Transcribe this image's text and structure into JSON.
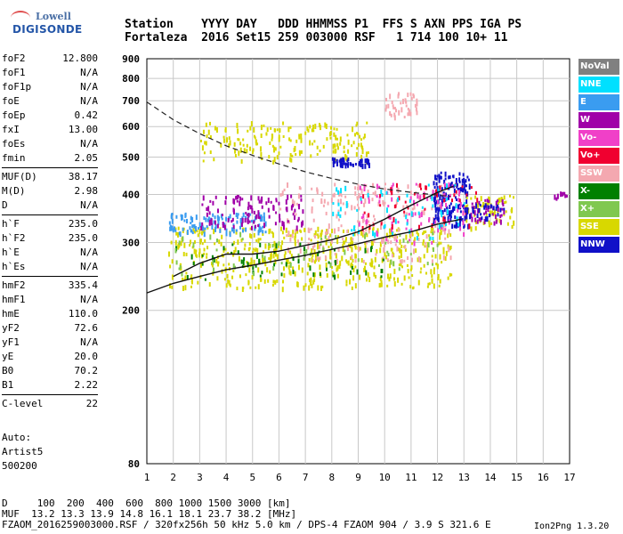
{
  "logo": {
    "line1": "Lowell",
    "line2": "DIGISONDE"
  },
  "header": {
    "row1": "Station    YYYY DAY   DDD HHMMSS P1  FFS S AXN PPS IGA PS",
    "row2": "Fortaleza  2016 Set15 259 003000 RSF   1 714 100 10+ 11"
  },
  "params": [
    {
      "name": "foF2",
      "value": "12.800"
    },
    {
      "name": "foF1",
      "value": "N/A"
    },
    {
      "name": "foF1p",
      "value": "N/A"
    },
    {
      "name": "foE",
      "value": "N/A"
    },
    {
      "name": "foEp",
      "value": "0.42"
    },
    {
      "name": "fxI",
      "value": "13.00"
    },
    {
      "name": "foEs",
      "value": "N/A"
    },
    {
      "name": "fmin",
      "value": "2.05"
    },
    {
      "name": "sep"
    },
    {
      "name": "MUF(D)",
      "value": "38.17"
    },
    {
      "name": "M(D)",
      "value": "2.98"
    },
    {
      "name": "D",
      "value": "N/A"
    },
    {
      "name": "sep"
    },
    {
      "name": "h`F",
      "value": "235.0"
    },
    {
      "name": "h`F2",
      "value": "235.0"
    },
    {
      "name": "h`E",
      "value": "N/A"
    },
    {
      "name": "h`Es",
      "value": "N/A"
    },
    {
      "name": "sep"
    },
    {
      "name": "hmF2",
      "value": "335.4"
    },
    {
      "name": "hmF1",
      "value": "N/A"
    },
    {
      "name": "hmE",
      "value": "110.0"
    },
    {
      "name": "yF2",
      "value": "72.6"
    },
    {
      "name": "yF1",
      "value": "N/A"
    },
    {
      "name": "yE",
      "value": "20.0"
    },
    {
      "name": "B0",
      "value": "70.2"
    },
    {
      "name": "B1",
      "value": "2.22"
    },
    {
      "name": "sep"
    },
    {
      "name": "C-level",
      "value": "22"
    }
  ],
  "auto": {
    "l1": "Auto:",
    "l2": "Artist5",
    "l3": "500200"
  },
  "legend": [
    {
      "label": "NoVal",
      "color": "#808080"
    },
    {
      "label": "NNE",
      "color": "#00e0ff"
    },
    {
      "label": "E",
      "color": "#3a9cf0"
    },
    {
      "label": "W",
      "color": "#a000a8"
    },
    {
      "label": "Vo-",
      "color": "#f040c8"
    },
    {
      "label": "Vo+",
      "color": "#f00030"
    },
    {
      "label": "SSW",
      "color": "#f4a8b0"
    },
    {
      "label": "X-",
      "color": "#008000"
    },
    {
      "label": "X+",
      "color": "#80c850"
    },
    {
      "label": "SSE",
      "color": "#d8d800"
    },
    {
      "label": "NNW",
      "color": "#1010c8"
    }
  ],
  "chart_data": {
    "type": "scatter",
    "xlim": [
      1,
      17
    ],
    "ylim": [
      80,
      900
    ],
    "y_scale": "log",
    "xticks": [
      "1",
      "2",
      "3",
      "4",
      "5",
      "6",
      "7",
      "8",
      "9",
      "10",
      "11",
      "12",
      "13",
      "14",
      "15",
      "16",
      "17"
    ],
    "yticks": [
      "900",
      "800",
      "700",
      "600",
      "500",
      "400",
      "300",
      "200",
      "80"
    ],
    "ytick_values": [
      900,
      800,
      700,
      600,
      500,
      400,
      300,
      200,
      80
    ],
    "grid": true,
    "trace_solid_upper": [
      [
        2,
        245
      ],
      [
        3,
        265
      ],
      [
        4,
        280
      ],
      [
        5,
        280
      ],
      [
        6,
        285
      ],
      [
        7,
        295
      ],
      [
        8,
        305
      ],
      [
        9,
        320
      ],
      [
        10,
        345
      ],
      [
        11,
        375
      ],
      [
        12,
        405
      ],
      [
        12.6,
        420
      ]
    ],
    "trace_solid_lower": [
      [
        1,
        222
      ],
      [
        2,
        235
      ],
      [
        3,
        245
      ],
      [
        4,
        255
      ],
      [
        5,
        262
      ],
      [
        6,
        270
      ],
      [
        7,
        278
      ],
      [
        8,
        288
      ],
      [
        9,
        298
      ],
      [
        10,
        310
      ],
      [
        11,
        320
      ],
      [
        12,
        335
      ],
      [
        12.9,
        345
      ]
    ],
    "trace_dashed": [
      [
        1,
        695
      ],
      [
        2,
        625
      ],
      [
        3,
        575
      ],
      [
        4,
        535
      ],
      [
        5,
        505
      ],
      [
        6,
        480
      ],
      [
        7,
        458
      ],
      [
        8,
        440
      ],
      [
        9,
        425
      ],
      [
        10,
        413
      ],
      [
        11,
        405
      ],
      [
        12.5,
        395
      ]
    ],
    "clusters": [
      {
        "color": "#d8d800",
        "x": [
          1.8,
          12.5
        ],
        "y": [
          230,
          330
        ],
        "n": 520
      },
      {
        "color": "#f4a8b0",
        "x": [
          6,
          12.5
        ],
        "y": [
          270,
          430
        ],
        "n": 220
      },
      {
        "color": "#3a9cf0",
        "x": [
          1.8,
          5.5
        ],
        "y": [
          320,
          360
        ],
        "n": 120
      },
      {
        "color": "#a000a8",
        "x": [
          3,
          7
        ],
        "y": [
          330,
          400
        ],
        "n": 110
      },
      {
        "color": "#1010c8",
        "x": [
          11.8,
          13.2
        ],
        "y": [
          330,
          460
        ],
        "n": 150
      },
      {
        "color": "#d8d800",
        "x": [
          3,
          9.5
        ],
        "y": [
          490,
          620
        ],
        "n": 180
      },
      {
        "color": "#f040c8",
        "x": [
          9,
          13
        ],
        "y": [
          300,
          430
        ],
        "n": 90
      },
      {
        "color": "#f00030",
        "x": [
          9,
          13.5
        ],
        "y": [
          330,
          430
        ],
        "n": 50
      },
      {
        "color": "#00e0ff",
        "x": [
          8,
          13
        ],
        "y": [
          310,
          430
        ],
        "n": 60
      },
      {
        "color": "#008000",
        "x": [
          2,
          10
        ],
        "y": [
          240,
          300
        ],
        "n": 60
      },
      {
        "color": "#80c850",
        "x": [
          2,
          12
        ],
        "y": [
          250,
          320
        ],
        "n": 60
      },
      {
        "color": "#1010c8",
        "x": [
          8,
          9.4
        ],
        "y": [
          480,
          500
        ],
        "n": 50
      },
      {
        "color": "#f4a8b0",
        "x": [
          10,
          11.2
        ],
        "y": [
          640,
          740
        ],
        "n": 40
      },
      {
        "color": "#d8d800",
        "x": [
          13,
          15
        ],
        "y": [
          330,
          400
        ],
        "n": 60
      },
      {
        "color": "#a000a8",
        "x": [
          13,
          14.5
        ],
        "y": [
          340,
          390
        ],
        "n": 40
      },
      {
        "color": "#1010c8",
        "x": [
          13,
          14.5
        ],
        "y": [
          350,
          380
        ],
        "n": 30
      },
      {
        "color": "#a000a8",
        "x": [
          16.3,
          17
        ],
        "y": [
          390,
          410
        ],
        "n": 10
      }
    ]
  },
  "footer": {
    "l1": "D     100  200  400  600  800 1000 1500 3000 [km]",
    "l2": "MUF  13.2 13.3 13.9 14.8 16.1 18.1 23.7 38.2 [MHz]",
    "l3": "FZAOM_2016259003000.RSF / 320fx256h 50 kHz 5.0 km / DPS-4 FZAOM 904 / 3.9 S 321.6 E",
    "ion": "Ion2Png 1.3.20"
  }
}
